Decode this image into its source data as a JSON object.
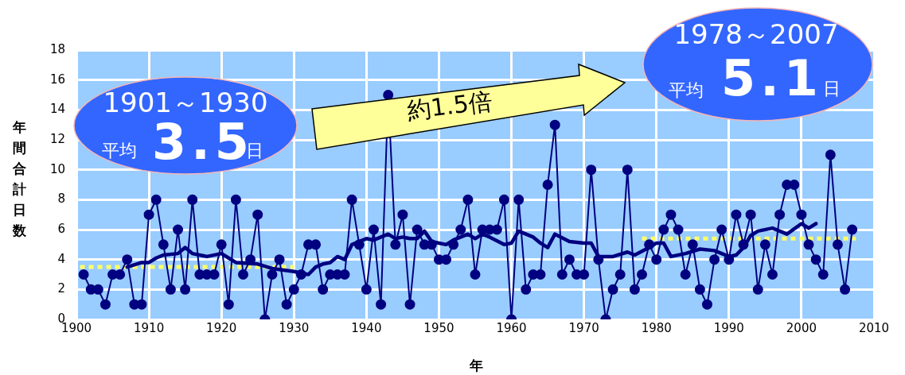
{
  "chart_data": {
    "type": "line",
    "xlabel": "年",
    "ylabel": "年間合計日数",
    "xlim": [
      1900,
      2010
    ],
    "xticks": [
      1900,
      1910,
      1920,
      1930,
      1940,
      1950,
      1960,
      1970,
      1980,
      1990,
      2000,
      2010
    ],
    "ylim": [
      0,
      18
    ],
    "yticks": [
      0,
      2,
      4,
      6,
      8,
      10,
      12,
      14,
      16,
      18
    ],
    "grid": true,
    "legend": false,
    "series": [
      {
        "color": "#000080",
        "marker": "circle",
        "x": [
          1901,
          1902,
          1903,
          1904,
          1905,
          1906,
          1907,
          1908,
          1909,
          1910,
          1911,
          1912,
          1913,
          1914,
          1915,
          1916,
          1917,
          1918,
          1919,
          1920,
          1921,
          1922,
          1923,
          1924,
          1925,
          1926,
          1927,
          1928,
          1929,
          1930,
          1931,
          1932,
          1933,
          1934,
          1935,
          1936,
          1937,
          1938,
          1939,
          1940,
          1941,
          1942,
          1943,
          1944,
          1945,
          1946,
          1947,
          1948,
          1949,
          1950,
          1951,
          1952,
          1953,
          1954,
          1955,
          1956,
          1957,
          1958,
          1959,
          1960,
          1961,
          1962,
          1963,
          1964,
          1965,
          1966,
          1967,
          1968,
          1969,
          1970,
          1971,
          1972,
          1973,
          1974,
          1975,
          1976,
          1977,
          1978,
          1979,
          1980,
          1981,
          1982,
          1983,
          1984,
          1985,
          1986,
          1987,
          1988,
          1989,
          1990,
          1991,
          1992,
          1993,
          1994,
          1995,
          1996,
          1997,
          1998,
          1999,
          2000,
          2001,
          2002,
          2003,
          2004,
          2005,
          2006,
          2007
        ],
        "values": [
          3,
          2,
          2,
          1,
          3,
          3,
          4,
          1,
          1,
          7,
          8,
          5,
          2,
          6,
          2,
          8,
          3,
          3,
          3,
          5,
          1,
          8,
          3,
          4,
          7,
          0,
          3,
          4,
          1,
          2,
          3,
          5,
          5,
          2,
          3,
          3,
          3,
          8,
          5,
          2,
          6,
          1,
          15,
          5,
          7,
          1,
          6,
          5,
          5,
          4,
          4,
          5,
          6,
          8,
          3,
          6,
          6,
          6,
          8,
          0,
          8,
          2,
          3,
          3,
          9,
          13,
          3,
          4,
          3,
          3,
          10,
          4,
          0,
          2,
          3,
          10,
          2,
          3,
          5,
          4,
          6,
          7,
          6,
          3,
          5,
          2,
          1,
          4,
          6,
          4,
          7,
          5,
          7,
          2,
          5,
          3,
          7,
          9,
          9,
          7,
          5,
          4,
          3,
          11,
          5,
          2,
          6
        ]
      },
      {
        "color": "#000080",
        "marker": "none",
        "x": [
          1907,
          1909,
          1910,
          1911,
          1912,
          1914,
          1915,
          1916,
          1918,
          1920,
          1921,
          1922,
          1925,
          1927,
          1930,
          1932,
          1933,
          1934,
          1935,
          1936,
          1937,
          1938,
          1939,
          1940,
          1941,
          1943,
          1944,
          1945,
          1946,
          1947,
          1948,
          1949,
          1950,
          1951,
          1952,
          1953,
          1954,
          1955,
          1956,
          1957,
          1959,
          1960,
          1961,
          1963,
          1964,
          1965,
          1966,
          1968,
          1970,
          1971,
          1972,
          1974,
          1976,
          1977,
          1979,
          1980,
          1981,
          1982,
          1984,
          1986,
          1988,
          1989,
          1990,
          1991,
          1992,
          1993,
          1994,
          1996,
          1998,
          2000,
          2001,
          2002
        ],
        "values": [
          3.5,
          3.8,
          3.8,
          4.1,
          4.3,
          4.4,
          4.8,
          4.4,
          4.2,
          4.4,
          4.1,
          3.8,
          3.7,
          3.4,
          3.2,
          3.0,
          3.5,
          3.7,
          3.8,
          4.2,
          4.0,
          5.0,
          5.2,
          5.4,
          5.3,
          5.7,
          5.4,
          5.5,
          5.4,
          5.4,
          5.9,
          5.2,
          5.1,
          5.0,
          5.3,
          5.5,
          5.7,
          5.4,
          5.7,
          5.5,
          5.0,
          5.1,
          5.9,
          5.5,
          5.1,
          4.8,
          5.7,
          5.2,
          5.1,
          5.1,
          4.2,
          4.2,
          4.5,
          4.3,
          4.8,
          5.1,
          5.1,
          4.2,
          4.4,
          4.7,
          4.6,
          4.4,
          4.2,
          4.3,
          4.8,
          5.6,
          5.9,
          6.1,
          5.7,
          6.4,
          6.1,
          6.4
        ]
      },
      {
        "color": "#ffff66",
        "marker": "none",
        "line_style": "dotted",
        "x": [
          1900.5,
          1930
        ],
        "values": [
          3.5,
          3.5
        ]
      },
      {
        "color": "#ffff66",
        "marker": "none",
        "line_style": "dotted",
        "x": [
          1978,
          2007.5
        ],
        "values": [
          5.4,
          5.4
        ]
      }
    ],
    "annotations": [
      "1901～1930",
      "平均",
      "3.5",
      "日",
      "1978～2007",
      "平均",
      "5.1",
      "日",
      "約1.5倍"
    ]
  }
}
